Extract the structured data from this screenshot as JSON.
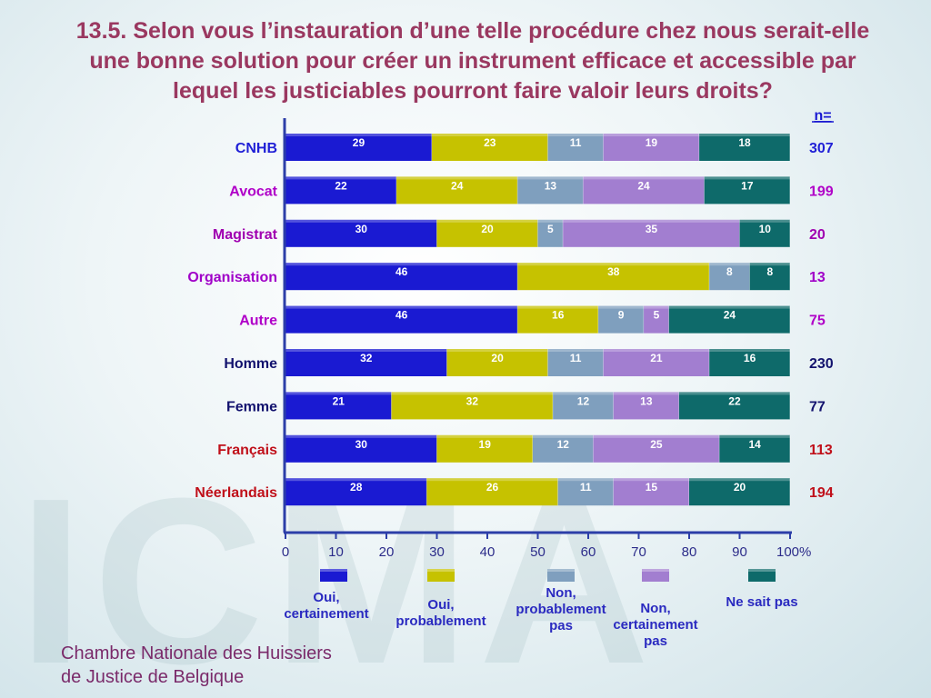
{
  "title": "13.5. Selon vous l’instauration d’une telle procédure chez nous serait-elle une bonne solution pour créer un instrument efficace et accessible par lequel les justiciables pourront faire valoir leurs droits?",
  "watermark": "ICMA",
  "footer": {
    "line1": "Chambre Nationale des Huissiers",
    "line2": "de Justice de Belgique"
  },
  "chart_data": {
    "type": "bar",
    "orientation": "horizontal",
    "stacked": true,
    "n_header": "n=",
    "xlim": [
      0,
      100
    ],
    "x_ticks": [
      0,
      10,
      20,
      30,
      40,
      50,
      60,
      70,
      80,
      90,
      100
    ],
    "x_unit": "%",
    "categories": [
      "CNHB",
      "Avocat",
      "Magistrat",
      "Organisation",
      "Autre",
      "Homme",
      "Femme",
      "Français",
      "Néerlandais"
    ],
    "category_colors": [
      "#1f1fd6",
      "#b000c8",
      "#a000b0",
      "#a000c8",
      "#b000c8",
      "#12126e",
      "#12126e",
      "#c0101a",
      "#c0101a"
    ],
    "n": [
      307,
      199,
      20,
      13,
      75,
      230,
      77,
      113,
      194
    ],
    "series": [
      {
        "name": "Oui, certainement",
        "color": "#1a1ad2",
        "values": [
          29,
          22,
          30,
          46,
          46,
          32,
          21,
          30,
          28
        ]
      },
      {
        "name": "Oui, probablement",
        "color": "#c6c200",
        "values": [
          23,
          24,
          20,
          38,
          16,
          20,
          32,
          19,
          26
        ]
      },
      {
        "name": "Non, probablement pas",
        "color": "#7f9fbe",
        "values": [
          11,
          13,
          5,
          8,
          9,
          11,
          12,
          12,
          11
        ]
      },
      {
        "name": "Non, certainement pas",
        "color": "#a27ed0",
        "values": [
          19,
          24,
          35,
          0,
          5,
          21,
          13,
          25,
          15
        ]
      },
      {
        "name": "Ne sait pas",
        "color": "#0e6a6a",
        "values": [
          18,
          17,
          10,
          8,
          24,
          16,
          22,
          14,
          20
        ]
      }
    ],
    "legend": [
      {
        "label_lines": [
          "Oui,",
          "certainement"
        ]
      },
      {
        "label_lines": [
          "Oui,",
          "probablement"
        ]
      },
      {
        "label_lines": [
          "Non,",
          "probablement",
          "pas"
        ]
      },
      {
        "label_lines": [
          "Non,",
          "certainement",
          "pas"
        ]
      },
      {
        "label_lines": [
          "Ne sait pas"
        ]
      }
    ]
  }
}
